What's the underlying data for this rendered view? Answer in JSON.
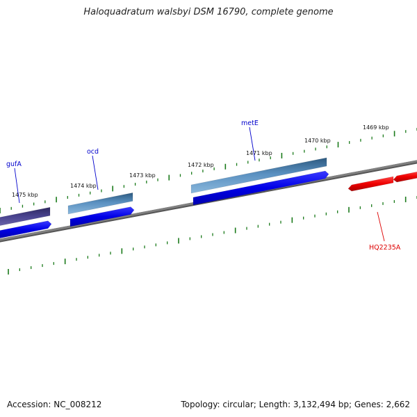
{
  "title": "Haloquadratum walsbyi DSM 16790, complete genome",
  "footer": {
    "accession": "Accession: NC_008212",
    "stats": "Topology: circular; Length: 3,132,494 bp; Genes: 2,662"
  },
  "tick_labels": [
    "1469 kbp",
    "1470 kbp",
    "1471 kbp",
    "1472 kbp",
    "1473 kbp",
    "1474 kbp",
    "1475 kbp"
  ],
  "genes": [
    {
      "name": "metE",
      "color": "#0000cc"
    },
    {
      "name": "ocd",
      "color": "#0000cc"
    },
    {
      "name": "gufA",
      "color": "#0000cc"
    },
    {
      "name": "HQ2235A",
      "color": "#dd0000"
    }
  ],
  "colors": {
    "backbone": "#808080",
    "cds_forward": "#0000ee",
    "cog_metabolism": "#4a7fb0",
    "cog_other": "#48407a",
    "cds_reverse": "#ee0000",
    "ticks": "#1a7a1a"
  }
}
